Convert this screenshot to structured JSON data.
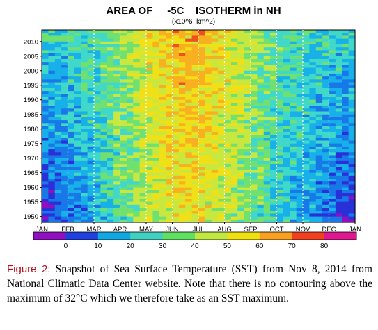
{
  "chart_data": {
    "type": "heatmap",
    "title": "AREA OF     -5C    ISOTHERM in NH",
    "subtitle": "(x10^6  km^2)",
    "x_tick_labels": [
      "JAN",
      "FEB",
      "MAR",
      "APR",
      "MAY",
      "JUN",
      "JUL",
      "AUG",
      "SEP",
      "OCT",
      "NOV",
      "DEC",
      "JAN"
    ],
    "y_tick_labels": [
      "1950",
      "1955",
      "1960",
      "1965",
      "1970",
      "1975",
      "1980",
      "1985",
      "1990",
      "1995",
      "2000",
      "2005",
      "2010"
    ],
    "y_range": [
      1948,
      2014
    ],
    "colorbar": {
      "tick_labels": [
        "0",
        "10",
        "20",
        "30",
        "40",
        "50",
        "60",
        "70",
        "80"
      ],
      "colors": [
        "#9010c0",
        "#2040e0",
        "#10a8e0",
        "#40d0c0",
        "#60e060",
        "#c0e840",
        "#f0e010",
        "#f8a020",
        "#f04020",
        "#e01890"
      ]
    },
    "grid": "dotted vertical lines at each month",
    "description_rows": "rows are years, columns are months; values are anomaly/area classes shown by colour"
  },
  "caption": {
    "label": "Figure 2:",
    "text": "Snapshot of Sea Surface Temperature (SST) from Nov 8, 2014 from National Climatic Data Center website. Note that there is no contouring above the maximum of 32°C which we therefore take as an SST maximum."
  }
}
